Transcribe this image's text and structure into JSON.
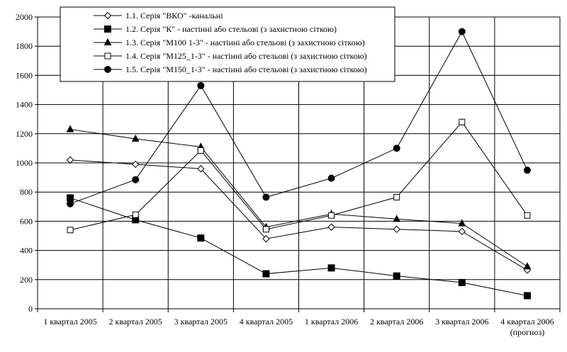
{
  "chart_data": {
    "type": "line",
    "title": "",
    "xlabel": "",
    "ylabel": "",
    "ylim": [
      0,
      2000
    ],
    "y_ticks": [
      0,
      200,
      400,
      600,
      800,
      1000,
      1200,
      1400,
      1600,
      1800,
      2000
    ],
    "grid": true,
    "legend_position": "top-center",
    "categories": [
      "1 квартал 2005",
      "2 квартал 2005",
      "3 квартал 2005",
      "4 квартал 2005",
      "1 квартал 2006",
      "2 квартал 2006",
      "3 квартал 2006",
      "4 квартал 2006"
    ],
    "category_note": {
      "index": 7,
      "text": "(прогноз)"
    },
    "series": [
      {
        "name": "1.1. Серія \"ВКО\" -канальні",
        "marker": "diamond-open",
        "values": [
          1020,
          990,
          960,
          480,
          560,
          545,
          530,
          265
        ]
      },
      {
        "name": "1.2. Серія \"К\" - настінні або стельові (з захистною сіткою)",
        "marker": "square-filled",
        "values": [
          760,
          610,
          485,
          240,
          280,
          225,
          180,
          90
        ]
      },
      {
        "name": "1.3. Серія \"М100 1-3\" - настінні або стельові (з захистною сіткою)",
        "marker": "triangle-filled",
        "values": [
          1230,
          1165,
          1110,
          560,
          650,
          615,
          585,
          290
        ]
      },
      {
        "name": "1.4. Серія \"М125_1-3\" - настінні або стельові (з захистною сіткою)",
        "marker": "square-open",
        "values": [
          540,
          645,
          1085,
          545,
          640,
          765,
          1280,
          640
        ]
      },
      {
        "name": "1.5. Серія \"М150_1-3\" - настінні або стельові (з захистною сіткою)",
        "marker": "circle-filled",
        "values": [
          720,
          885,
          1530,
          765,
          895,
          1100,
          1900,
          950
        ]
      }
    ]
  }
}
